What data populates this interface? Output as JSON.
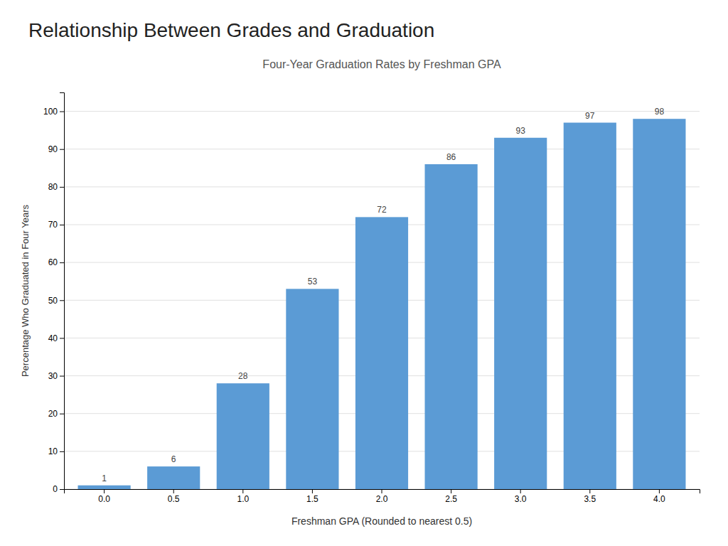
{
  "chart_data": {
    "type": "bar",
    "title": "Relationship Between Grades and Graduation",
    "subtitle": "Four-Year Graduation Rates by Freshman GPA",
    "xlabel": "Freshman GPA (Rounded to nearest 0.5)",
    "ylabel": "Percentage Who Graduated in Four Years",
    "categories": [
      "0.0",
      "0.5",
      "1.0",
      "1.5",
      "2.0",
      "2.5",
      "3.0",
      "3.5",
      "4.0"
    ],
    "values": [
      1,
      6,
      28,
      53,
      72,
      86,
      93,
      97,
      98
    ],
    "color": "#5B9BD5",
    "ylim": [
      0,
      105
    ],
    "yticks": [
      0,
      10,
      20,
      30,
      40,
      50,
      60,
      70,
      80,
      90,
      100
    ],
    "grid": true,
    "data_labels": true
  }
}
